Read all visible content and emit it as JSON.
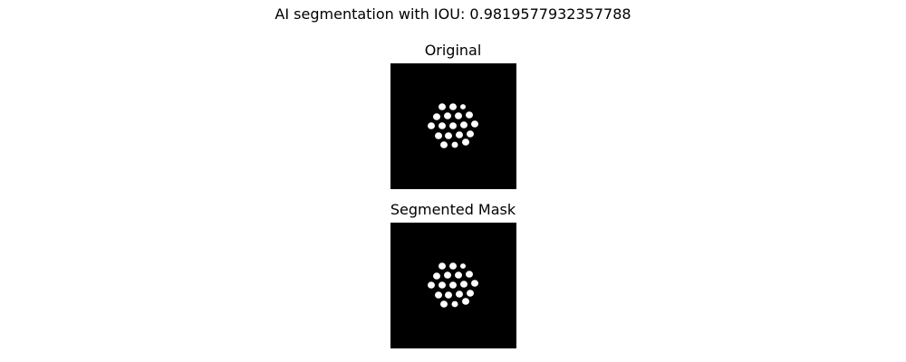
{
  "figure": {
    "suptitle": "AI segmentation with IOU: 0.9819577932357788"
  },
  "panels": [
    {
      "title": "Original",
      "background_color": "#000000",
      "blob_color": "#ffffff"
    },
    {
      "title": "Segmented Mask",
      "background_color": "#000000",
      "blob_color": "#ffffff"
    }
  ]
}
